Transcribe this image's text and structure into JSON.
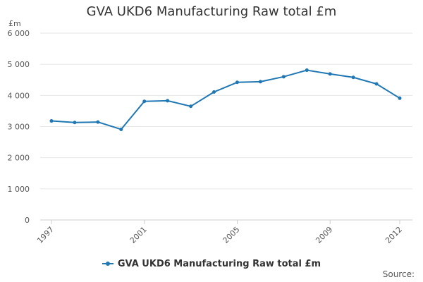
{
  "chart_data": {
    "type": "line",
    "title": "GVA UKD6 Manufacturing Raw total £m",
    "ylabel": "£m",
    "xlabel": "",
    "x": [
      1997,
      1998,
      1999,
      2000,
      2001,
      2002,
      2003,
      2004,
      2005,
      2006,
      2007,
      2008,
      2009,
      2010,
      2011,
      2012
    ],
    "series": [
      {
        "name": "GVA UKD6 Manufacturing Raw total £m",
        "values": [
          3180,
          3130,
          3145,
          2910,
          3810,
          3830,
          3650,
          4110,
          4420,
          4440,
          4600,
          4810,
          4690,
          4580,
          4370,
          3910
        ]
      }
    ],
    "ylim": [
      0,
      6000
    ],
    "yticks": [
      0,
      1000,
      2000,
      3000,
      4000,
      5000,
      6000
    ],
    "ytick_labels": [
      "0",
      "1 000",
      "2 000",
      "3 000",
      "4 000",
      "5 000",
      "6 000"
    ],
    "xticks": [
      1997,
      2001,
      2005,
      2009,
      2012
    ],
    "xtick_labels": [
      "1997",
      "2001",
      "2005",
      "2009",
      "2012"
    ],
    "grid": true,
    "legend": "bottom-center",
    "color": "#1f77b4"
  },
  "source_label": "Source:"
}
